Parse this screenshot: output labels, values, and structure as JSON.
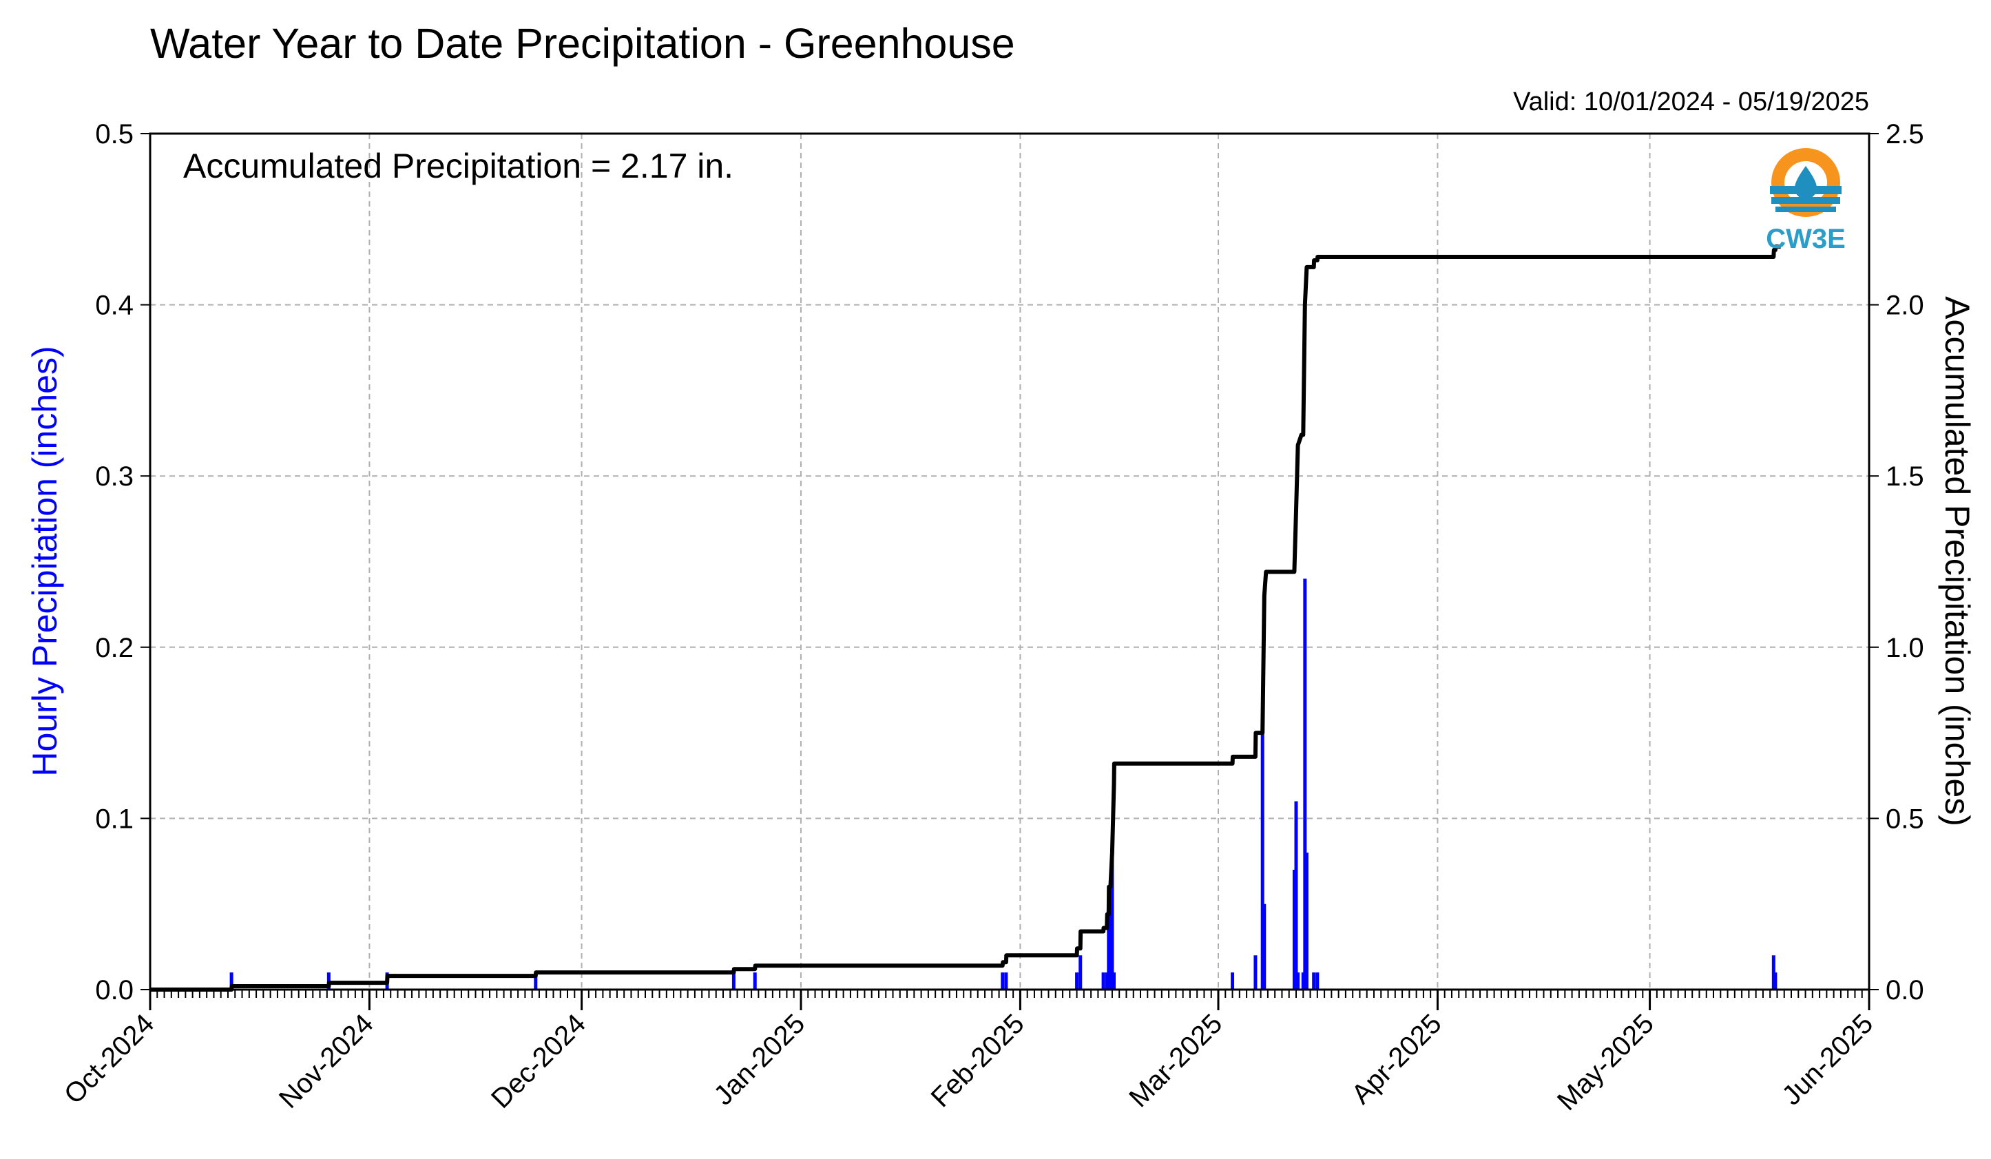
{
  "chart_data": {
    "type": "bar",
    "title": "Water Year to Date Precipitation - Greenhouse",
    "valid_label": "Valid: 10/01/2024 - 05/19/2025",
    "annotation": "Accumulated Precipitation = 2.17 in.",
    "ylabel_left": "Hourly Precipitation (inches)",
    "ylabel_right": "Accumulated Precipitation (inches)",
    "xlim": [
      "2024-10-01",
      "2025-06-01"
    ],
    "ylim_left": [
      0,
      0.5
    ],
    "ylim_right": [
      0,
      2.5
    ],
    "yticks_left": [
      "0.0",
      "0.1",
      "0.2",
      "0.3",
      "0.4",
      "0.5"
    ],
    "yticks_right": [
      "0.0",
      "0.5",
      "1.0",
      "1.5",
      "2.0",
      "2.5"
    ],
    "xticks": [
      {
        "date": "2024-10-01",
        "label": "Oct-2024"
      },
      {
        "date": "2024-11-01",
        "label": "Nov-2024"
      },
      {
        "date": "2024-12-01",
        "label": "Dec-2024"
      },
      {
        "date": "2025-01-01",
        "label": "Jan-2025"
      },
      {
        "date": "2025-02-01",
        "label": "Feb-2025"
      },
      {
        "date": "2025-03-01",
        "label": "Mar-2025"
      },
      {
        "date": "2025-04-01",
        "label": "Apr-2025"
      },
      {
        "date": "2025-05-01",
        "label": "May-2025"
      },
      {
        "date": "2025-06-01",
        "label": "Jun-2025"
      }
    ],
    "grid": true,
    "series": [
      {
        "name": "",
        "kind": "bar",
        "axis": "left",
        "color": "#0000ff",
        "points": [
          [
            "2024-10-12T12:00",
            0.01
          ],
          [
            "2024-10-26T06:00",
            0.01
          ],
          [
            "2024-11-03T12:00",
            0.01
          ],
          [
            "2024-11-24T12:00",
            0.01
          ],
          [
            "2024-12-22T12:00",
            0.01
          ],
          [
            "2024-12-25T12:00",
            0.01
          ],
          [
            "2025-01-29T12:00",
            0.01
          ],
          [
            "2025-01-30T00:00",
            0.01
          ],
          [
            "2025-02-09T00:00",
            0.01
          ],
          [
            "2025-02-09T12:00",
            0.02
          ],
          [
            "2025-02-12T18:00",
            0.01
          ],
          [
            "2025-02-13T06:00",
            0.01
          ],
          [
            "2025-02-13T12:00",
            0.04
          ],
          [
            "2025-02-13T18:00",
            0.06
          ],
          [
            "2025-02-14T00:00",
            0.08
          ],
          [
            "2025-02-14T06:00",
            0.01
          ],
          [
            "2025-03-03T00:00",
            0.01
          ],
          [
            "2025-03-06T06:00",
            0.02
          ],
          [
            "2025-03-07T06:00",
            0.15
          ],
          [
            "2025-03-07T12:00",
            0.05
          ],
          [
            "2025-03-11T18:00",
            0.07
          ],
          [
            "2025-03-12T00:00",
            0.11
          ],
          [
            "2025-03-12T06:00",
            0.01
          ],
          [
            "2025-03-13T00:00",
            0.01
          ],
          [
            "2025-03-13T06:00",
            0.24
          ],
          [
            "2025-03-13T12:00",
            0.08
          ],
          [
            "2025-03-14T12:00",
            0.01
          ],
          [
            "2025-03-15T00:00",
            0.01
          ],
          [
            "2025-05-18T12:00",
            0.02
          ],
          [
            "2025-05-18T18:00",
            0.01
          ]
        ]
      },
      {
        "name": "",
        "kind": "line",
        "axis": "right",
        "color": "#000000",
        "points": [
          [
            "2024-10-01T00:00",
            0.0
          ],
          [
            "2024-10-12T12:00",
            0.0
          ],
          [
            "2024-10-12T13:00",
            0.01
          ],
          [
            "2024-10-26T06:00",
            0.01
          ],
          [
            "2024-10-26T07:00",
            0.02
          ],
          [
            "2024-11-03T12:00",
            0.02
          ],
          [
            "2024-11-03T13:00",
            0.04
          ],
          [
            "2024-11-24T12:00",
            0.04
          ],
          [
            "2024-11-24T13:00",
            0.05
          ],
          [
            "2024-12-22T12:00",
            0.05
          ],
          [
            "2024-12-22T13:00",
            0.06
          ],
          [
            "2024-12-25T12:00",
            0.06
          ],
          [
            "2024-12-25T13:00",
            0.07
          ],
          [
            "2025-01-29T12:00",
            0.07
          ],
          [
            "2025-01-29T13:00",
            0.08
          ],
          [
            "2025-01-30T00:00",
            0.08
          ],
          [
            "2025-01-30T01:00",
            0.1
          ],
          [
            "2025-02-09T00:00",
            0.1
          ],
          [
            "2025-02-09T01:00",
            0.12
          ],
          [
            "2025-02-09T12:00",
            0.12
          ],
          [
            "2025-02-09T13:00",
            0.17
          ],
          [
            "2025-02-12T18:00",
            0.17
          ],
          [
            "2025-02-12T19:00",
            0.18
          ],
          [
            "2025-02-13T06:00",
            0.18
          ],
          [
            "2025-02-13T07:00",
            0.22
          ],
          [
            "2025-02-13T12:00",
            0.22
          ],
          [
            "2025-02-13T13:00",
            0.3
          ],
          [
            "2025-02-13T18:00",
            0.3
          ],
          [
            "2025-02-14T00:00",
            0.4
          ],
          [
            "2025-02-14T06:00",
            0.6
          ],
          [
            "2025-02-14T07:00",
            0.66
          ],
          [
            "2025-03-03T00:00",
            0.66
          ],
          [
            "2025-03-03T01:00",
            0.68
          ],
          [
            "2025-03-06T06:00",
            0.68
          ],
          [
            "2025-03-06T07:00",
            0.75
          ],
          [
            "2025-03-07T06:00",
            0.75
          ],
          [
            "2025-03-07T12:00",
            1.15
          ],
          [
            "2025-03-07T18:00",
            1.22
          ],
          [
            "2025-03-11T18:00",
            1.22
          ],
          [
            "2025-03-12T00:00",
            1.4
          ],
          [
            "2025-03-12T06:00",
            1.59
          ],
          [
            "2025-03-12T18:00",
            1.62
          ],
          [
            "2025-03-13T00:00",
            1.62
          ],
          [
            "2025-03-13T06:00",
            2.0
          ],
          [
            "2025-03-13T12:00",
            2.11
          ],
          [
            "2025-03-14T12:00",
            2.11
          ],
          [
            "2025-03-14T13:00",
            2.13
          ],
          [
            "2025-03-15T00:00",
            2.13
          ],
          [
            "2025-03-15T01:00",
            2.14
          ],
          [
            "2025-05-18T12:00",
            2.14
          ],
          [
            "2025-05-18T13:00",
            2.16
          ],
          [
            "2025-05-18T18:00",
            2.16
          ],
          [
            "2025-05-18T19:00",
            2.17
          ],
          [
            "2025-05-19T12:00",
            2.17
          ]
        ]
      }
    ],
    "colors": {
      "bars": "#0000ff",
      "accumulated_line": "#000000",
      "left_axis_label": "#0000ff",
      "grid": "#b0b0b0"
    },
    "logo": {
      "text": "CW3E",
      "colors": {
        "sun": "#f7941d",
        "water": "#1f8fbf",
        "text": "#2a9ec9"
      }
    }
  }
}
